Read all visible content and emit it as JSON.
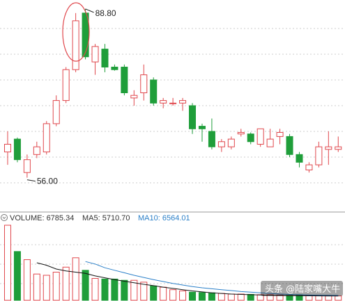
{
  "chart_data": {
    "type": "candlestick",
    "price_axis": {
      "min": 50,
      "max": 90
    },
    "annotations": {
      "high_label": "88.80",
      "low_label": "56.00"
    },
    "colors": {
      "up": "#e0474c",
      "down": "#1f9e3a",
      "ma5": "#111111",
      "ma10": "#2a7fc8",
      "grid": "#cccccc"
    },
    "candles": [
      {
        "o": 61.0,
        "h": 65.0,
        "l": 58.5,
        "c": 62.5
      },
      {
        "o": 63.5,
        "h": 63.8,
        "l": 59.0,
        "c": 59.5
      },
      {
        "o": 57.0,
        "h": 60.5,
        "l": 56.0,
        "c": 59.5
      },
      {
        "o": 60.5,
        "h": 63.0,
        "l": 59.8,
        "c": 62.0
      },
      {
        "o": 61.0,
        "h": 67.0,
        "l": 60.5,
        "c": 66.5
      },
      {
        "o": 66.5,
        "h": 72.0,
        "l": 66.0,
        "c": 71.0
      },
      {
        "o": 71.0,
        "h": 77.5,
        "l": 70.5,
        "c": 77.0
      },
      {
        "o": 77.0,
        "h": 88.0,
        "l": 76.5,
        "c": 86.5
      },
      {
        "o": 88.0,
        "h": 88.8,
        "l": 79.0,
        "c": 79.5
      },
      {
        "o": 78.5,
        "h": 82.0,
        "l": 76.0,
        "c": 81.5
      },
      {
        "o": 81.0,
        "h": 82.0,
        "l": 76.5,
        "c": 77.5
      },
      {
        "o": 77.5,
        "h": 78.0,
        "l": 76.8,
        "c": 77.0
      },
      {
        "o": 77.5,
        "h": 78.0,
        "l": 72.0,
        "c": 72.5
      },
      {
        "o": 71.5,
        "h": 73.0,
        "l": 70.0,
        "c": 72.0
      },
      {
        "o": 72.5,
        "h": 78.0,
        "l": 71.0,
        "c": 76.0
      },
      {
        "o": 75.0,
        "h": 75.5,
        "l": 70.0,
        "c": 70.5
      },
      {
        "o": 70.5,
        "h": 71.5,
        "l": 69.5,
        "c": 71.0
      },
      {
        "o": 70.5,
        "h": 71.5,
        "l": 70.0,
        "c": 70.5
      },
      {
        "o": 70.5,
        "h": 71.5,
        "l": 69.0,
        "c": 71.0
      },
      {
        "o": 70.0,
        "h": 70.5,
        "l": 64.5,
        "c": 65.5
      },
      {
        "o": 66.0,
        "h": 66.5,
        "l": 63.0,
        "c": 65.5
      },
      {
        "o": 65.0,
        "h": 67.5,
        "l": 61.5,
        "c": 62.0
      },
      {
        "o": 62.0,
        "h": 63.5,
        "l": 61.0,
        "c": 63.0
      },
      {
        "o": 62.0,
        "h": 64.0,
        "l": 61.5,
        "c": 63.5
      },
      {
        "o": 64.5,
        "h": 65.5,
        "l": 64.0,
        "c": 64.8
      },
      {
        "o": 64.5,
        "h": 64.8,
        "l": 62.5,
        "c": 63.0
      },
      {
        "o": 62.5,
        "h": 65.5,
        "l": 62.0,
        "c": 65.5
      },
      {
        "o": 62.0,
        "h": 65.5,
        "l": 62.0,
        "c": 63.5
      },
      {
        "o": 64.0,
        "h": 65.5,
        "l": 62.5,
        "c": 64.8
      },
      {
        "o": 64.0,
        "h": 64.5,
        "l": 60.0,
        "c": 60.5
      },
      {
        "o": 60.5,
        "h": 61.0,
        "l": 58.0,
        "c": 59.0
      },
      {
        "o": 57.5,
        "h": 59.0,
        "l": 57.0,
        "c": 58.5
      },
      {
        "o": 58.5,
        "h": 63.0,
        "l": 58.0,
        "c": 62.0
      },
      {
        "o": 61.5,
        "h": 65.0,
        "l": 58.5,
        "c": 62.0
      },
      {
        "o": 61.5,
        "h": 64.0,
        "l": 61.0,
        "c": 62.0
      }
    ],
    "volume": {
      "legend": {
        "volume": "VOLUME: 6785.34",
        "ma5": "MA5: 5710.70",
        "ma10": "MA10: 6564.01"
      },
      "max": 12000,
      "bars": [
        12000,
        7800,
        6500,
        4200,
        4000,
        4500,
        5300,
        6800,
        4800,
        3500,
        3400,
        3400,
        3200,
        3200,
        2900,
        2300,
        2100,
        1700,
        1500,
        1300,
        1250,
        1200,
        1100,
        1000,
        1000,
        950,
        900,
        900,
        850,
        800,
        800,
        750,
        750,
        720,
        700
      ],
      "ma5": [
        null,
        null,
        null,
        6000,
        5600,
        5000,
        4700,
        4500,
        4300,
        3900,
        3600,
        3300,
        3050,
        2800,
        2550,
        2350,
        2100,
        1900,
        1700,
        1500,
        1350,
        1200,
        1100,
        1000,
        950,
        900,
        850,
        800,
        780,
        760,
        740,
        720,
        710,
        700,
        690
      ],
      "ma10": [
        null,
        null,
        null,
        null,
        null,
        null,
        null,
        null,
        6200,
        5800,
        5200,
        4800,
        4400,
        4000,
        3650,
        3300,
        3000,
        2700,
        2450,
        2200,
        2000,
        1850,
        1700,
        1550,
        1400,
        1300,
        1200,
        1100,
        1000,
        950,
        900,
        850,
        820,
        800,
        780
      ]
    }
  },
  "watermark": {
    "text": "头条 @陆家嘴大牛"
  }
}
